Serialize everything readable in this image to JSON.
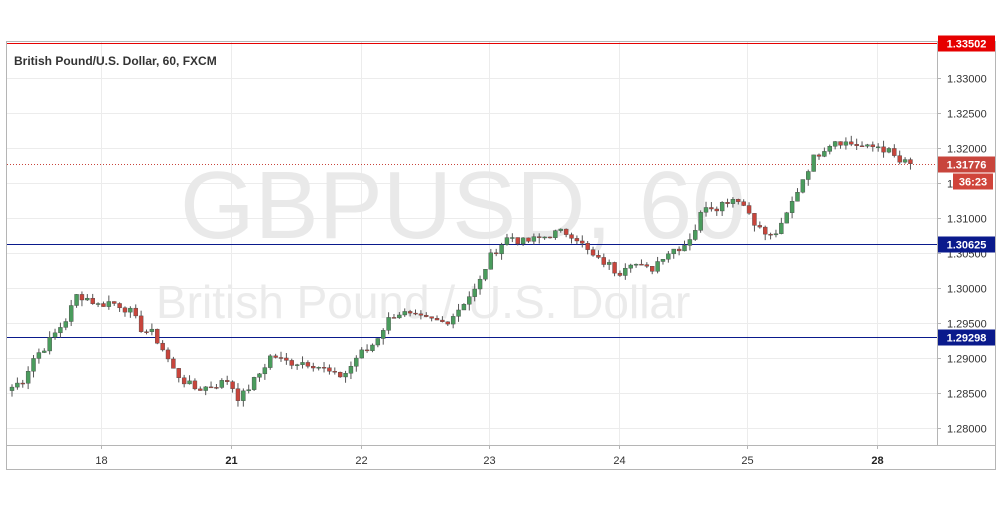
{
  "header": {
    "title": "British Pound/U.S. Dollar, 60, FXCM"
  },
  "watermark": {
    "symbol": "GBPUSD, 60",
    "name": "British Pound / U.S. Dollar"
  },
  "colors": {
    "up": "#4a9c5d",
    "down": "#c8453c",
    "wick": "#555555",
    "grid": "#ececec",
    "resistance": "#e60000",
    "support": "#0a1a8c",
    "price_line": "#c8453c",
    "timer_bg": "#d0453b"
  },
  "chart_data": {
    "type": "candlestick",
    "symbol": "GBPUSD",
    "timeframe": "60",
    "ylim": [
      1.2775,
      1.3352
    ],
    "y_ticks": [
      "1.28000",
      "1.28500",
      "1.29000",
      "1.29500",
      "1.30000",
      "1.30500",
      "1.31000",
      "1.31500",
      "1.32000",
      "1.32500",
      "1.33000"
    ],
    "x_ticks": [
      {
        "label": "18",
        "bold": false
      },
      {
        "label": "21",
        "bold": true
      },
      {
        "label": "22",
        "bold": false
      },
      {
        "label": "23",
        "bold": false
      },
      {
        "label": "24",
        "bold": false
      },
      {
        "label": "25",
        "bold": false
      },
      {
        "label": "28",
        "bold": true
      }
    ],
    "horizontal_levels": [
      {
        "label": "1.33502",
        "value": 1.33502,
        "style": "solid",
        "color": "#e60000"
      },
      {
        "label": "1.30625",
        "value": 1.30625,
        "style": "solid",
        "color": "#0a1a8c"
      },
      {
        "label": "1.29298",
        "value": 1.29298,
        "style": "solid",
        "color": "#0a1a8c"
      }
    ],
    "current_price": {
      "label": "1.31776",
      "value": 1.31776,
      "countdown": "36:23"
    },
    "path": [
      [
        1.2858,
        0
      ],
      [
        1.2868,
        0
      ],
      [
        1.29,
        0
      ],
      [
        1.2915,
        0
      ],
      [
        1.2935,
        0
      ],
      [
        1.2955,
        0
      ],
      [
        1.299,
        0
      ],
      [
        1.2985,
        0
      ],
      [
        1.2975,
        0
      ],
      [
        1.298,
        0
      ],
      [
        1.2975,
        0
      ],
      [
        1.2965,
        0
      ],
      [
        1.294,
        0
      ],
      [
        1.2935,
        0
      ],
      [
        1.291,
        0
      ],
      [
        1.288,
        0
      ],
      [
        1.2865,
        0
      ],
      [
        1.2855,
        0
      ],
      [
        1.2858,
        0
      ],
      [
        1.2862,
        0
      ],
      [
        1.2868,
        0
      ],
      [
        1.284,
        0
      ],
      [
        1.286,
        0
      ],
      [
        1.288,
        0
      ],
      [
        1.2905,
        0
      ],
      [
        1.2895,
        0
      ],
      [
        1.2893,
        0
      ],
      [
        1.2894,
        0
      ],
      [
        1.289,
        0
      ],
      [
        1.2882,
        0
      ],
      [
        1.2872,
        0
      ],
      [
        1.288,
        0
      ],
      [
        1.2905,
        0
      ],
      [
        1.2912,
        0
      ],
      [
        1.2935,
        0
      ],
      [
        1.296,
        0
      ],
      [
        1.2965,
        0
      ],
      [
        1.2958,
        0
      ],
      [
        1.2955,
        0
      ],
      [
        1.2953,
        0
      ],
      [
        1.295,
        0
      ],
      [
        1.2965,
        0
      ],
      [
        1.2985,
        0
      ],
      [
        1.3,
        0
      ],
      [
        1.304,
        0
      ],
      [
        1.306,
        0
      ],
      [
        1.3075,
        0
      ],
      [
        1.3065,
        0
      ],
      [
        1.3068,
        0
      ],
      [
        1.3072,
        0
      ],
      [
        1.3078,
        0
      ],
      [
        1.308,
        0
      ],
      [
        1.3075,
        0
      ],
      [
        1.3055,
        0
      ],
      [
        1.304,
        0
      ],
      [
        1.3035,
        0
      ],
      [
        1.302,
        0
      ],
      [
        1.304,
        0
      ],
      [
        1.303,
        0
      ],
      [
        1.3025,
        0
      ],
      [
        1.3045,
        0
      ],
      [
        1.3055,
        0
      ],
      [
        1.306,
        0
      ],
      [
        1.308,
        0
      ],
      [
        1.312,
        0
      ],
      [
        1.3115,
        0
      ],
      [
        1.3125,
        0
      ],
      [
        1.313,
        0
      ],
      [
        1.311,
        0
      ],
      [
        1.3085,
        0
      ],
      [
        1.3072,
        0
      ],
      [
        1.3085,
        0
      ],
      [
        1.312,
        0
      ],
      [
        1.3155,
        0
      ],
      [
        1.3185,
        0
      ],
      [
        1.32,
        0
      ],
      [
        1.3212,
        0
      ],
      [
        1.3208,
        0
      ],
      [
        1.3205,
        0
      ],
      [
        1.32,
        0
      ],
      [
        1.3203,
        0
      ],
      [
        1.3195,
        0
      ],
      [
        1.318,
        0
      ],
      [
        1.31776,
        0
      ]
    ]
  }
}
